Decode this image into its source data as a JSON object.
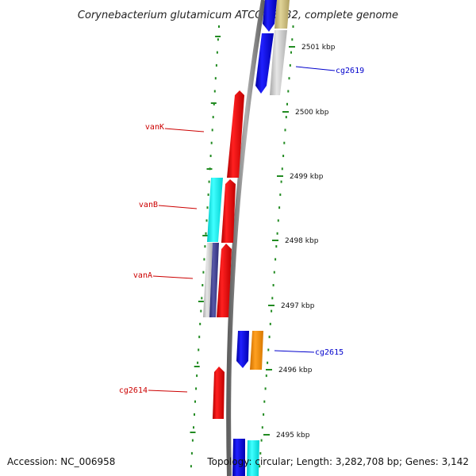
{
  "title": "Corynebacterium glutamicum ATCC 13032, complete genome",
  "accession_text": "Accession: NC_006958",
  "topology_text": "Topology: circular; Length: 3,282,708 bp; Genes: 3,142",
  "ticks": [
    {
      "label": "2501 kbp"
    },
    {
      "label": "2500 kbp"
    },
    {
      "label": "2499 kbp"
    },
    {
      "label": "2498 kbp"
    },
    {
      "label": "2497 kbp"
    },
    {
      "label": "2496 kbp"
    },
    {
      "label": "2495 kbp"
    }
  ],
  "gene_labels": [
    {
      "text": "cg2619",
      "strand": "reverse"
    },
    {
      "text": "vanK",
      "strand": "forward"
    },
    {
      "text": "vanB",
      "strand": "forward"
    },
    {
      "text": "vanA",
      "strand": "forward"
    },
    {
      "text": "cg2615",
      "strand": "reverse"
    },
    {
      "text": "cg2614",
      "strand": "forward"
    }
  ],
  "colors": {
    "forward_gene": "#ff0000",
    "reverse_gene": "#0000ee",
    "cyan_feature": "#00ffff",
    "orange_feature": "#ff8c00",
    "grey_feature": "#c8c8c8",
    "navy_feature": "#3a3a8c",
    "olive_feature": "#c8b878",
    "backbone": "#808080",
    "tick": "#228b22",
    "label_red": "#cc0000",
    "label_blue": "#0000cc"
  }
}
